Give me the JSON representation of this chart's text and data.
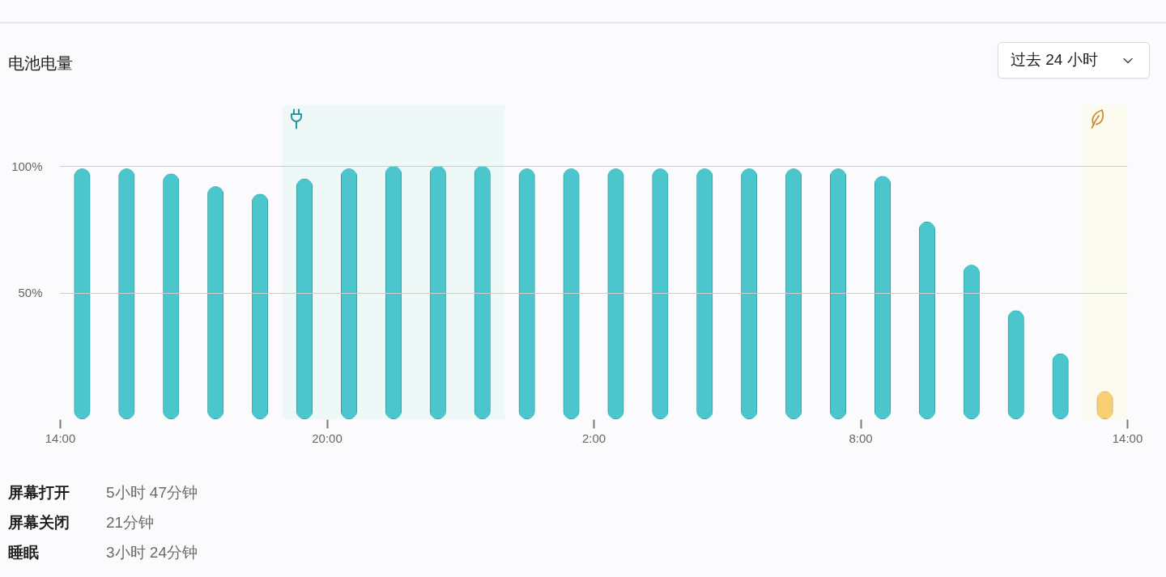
{
  "chart_data": {
    "type": "bar",
    "title": "电池电量",
    "annotations": [
      "过去 24 小时",
      "屏幕打开",
      "5小时 47分钟",
      "屏幕关闭",
      "21分钟",
      "睡眠",
      "3小时 24分钟"
    ],
    "x": [
      "--01-01T14:30",
      "--01-01T15:30",
      "--01-01T16:30",
      "--01-01T17:30",
      "--01-01T18:30",
      "--01-01T19:30",
      "--01-01T20:30",
      "--01-01T21:30",
      "--01-01T22:30",
      "--01-01T23:30",
      "--01-02T00:30",
      "--01-02T01:30",
      "--01-02T02:30",
      "--01-02T03:30",
      "--01-02T04:30",
      "--01-02T05:30",
      "--01-02T06:30",
      "--01-02T07:30",
      "--01-02T08:30",
      "--01-02T09:30",
      "--01-02T10:30",
      "--01-02T11:30",
      "--01-02T12:30",
      "--01-02T13:30"
    ],
    "values": [
      99,
      99,
      97,
      92,
      89,
      95,
      99,
      100,
      100,
      100,
      99,
      99,
      99,
      99,
      99,
      99,
      99,
      99,
      96,
      78,
      61,
      43,
      26,
      11
    ],
    "colors": [
      "#4ac6cc",
      "#4ac6cc",
      "#4ac6cc",
      "#4ac6cc",
      "#4ac6cc",
      "#4ac6cc",
      "#4ac6cc",
      "#4ac6cc",
      "#4ac6cc",
      "#4ac6cc",
      "#4ac6cc",
      "#4ac6cc",
      "#4ac6cc",
      "#4ac6cc",
      "#4ac6cc",
      "#4ac6cc",
      "#4ac6cc",
      "#4ac6cc",
      "#4ac6cc",
      "#4ac6cc",
      "#4ac6cc",
      "#4ac6cc",
      "#4ac6cc",
      "#f8cf73"
    ],
    "xlim": [
      "--01-01T14:00",
      "--01-02T14:00"
    ],
    "xticks": [
      {
        "value": "--01-01T14:00",
        "label": "14:00"
      },
      {
        "value": "--01-01T20:00",
        "label": "20:00"
      },
      {
        "value": "--01-02T02:00",
        "label": "2:00"
      },
      {
        "value": "--01-02T08:00",
        "label": "8:00"
      },
      {
        "value": "--01-02T14:00",
        "label": "14:00"
      }
    ],
    "ylim": [
      0,
      124
    ],
    "yticks": [
      {
        "value": 50,
        "label": "50%"
      },
      {
        "value": 100,
        "label": "100%"
      }
    ],
    "bands": [
      {
        "axis": "x",
        "from": "--01-01T19:00",
        "to": "--01-02T00:00",
        "color": "#eef8f7"
      },
      {
        "axis": "x",
        "from": "--01-02T13:00",
        "to": "--01-02T14:00",
        "color": "#fbfaee"
      }
    ],
    "grid": "y"
  }
}
